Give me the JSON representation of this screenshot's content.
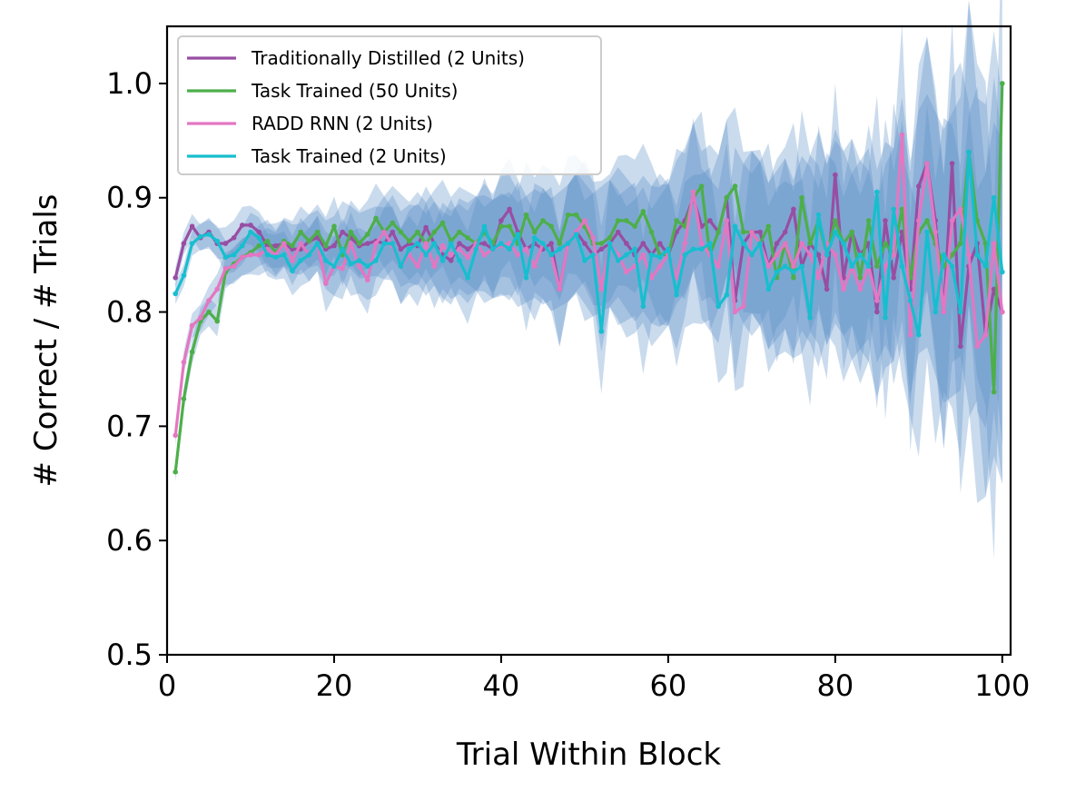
{
  "chart_data": {
    "type": "line",
    "title": "",
    "xlabel": "Trial Within Block",
    "ylabel": "# Correct / # Trials",
    "xlim": [
      0,
      101
    ],
    "ylim": [
      0.5,
      1.05
    ],
    "xticks": [
      0,
      20,
      40,
      60,
      80,
      100
    ],
    "xtick_labels": [
      "0",
      "20",
      "40",
      "60",
      "80",
      "100"
    ],
    "yticks": [
      0.5,
      0.6,
      0.7,
      0.8,
      0.9,
      1.0
    ],
    "ytick_labels": [
      "0.5",
      "0.6",
      "0.7",
      "0.8",
      "0.9",
      "1.0"
    ],
    "grid": false,
    "legend_position": "top-left",
    "confidence_band_color": "#5b8fc7",
    "series": [
      {
        "name": "Traditionally Distilled (2 Units)",
        "color": "#984ea3",
        "x": [
          1,
          2,
          3,
          4,
          5,
          6,
          7,
          8,
          9,
          10,
          11,
          12,
          13,
          14,
          15,
          16,
          17,
          18,
          19,
          20,
          21,
          22,
          23,
          24,
          25,
          26,
          27,
          28,
          29,
          30,
          31,
          32,
          33,
          34,
          35,
          36,
          37,
          38,
          39,
          40,
          41,
          42,
          43,
          44,
          45,
          46,
          47,
          48,
          49,
          50,
          51,
          52,
          53,
          54,
          55,
          56,
          57,
          58,
          59,
          60,
          61,
          62,
          63,
          64,
          65,
          66,
          67,
          68,
          69,
          70,
          71,
          72,
          73,
          74,
          75,
          76,
          77,
          78,
          79,
          80,
          81,
          82,
          83,
          84,
          85,
          86,
          87,
          88,
          89,
          90,
          91,
          92,
          93,
          94,
          95,
          96,
          97,
          98,
          99,
          100
        ],
        "values": [
          0.83,
          0.86,
          0.875,
          0.865,
          0.87,
          0.86,
          0.86,
          0.865,
          0.876,
          0.876,
          0.87,
          0.858,
          0.858,
          0.86,
          0.855,
          0.855,
          0.862,
          0.865,
          0.855,
          0.858,
          0.87,
          0.865,
          0.858,
          0.86,
          0.862,
          0.86,
          0.87,
          0.855,
          0.86,
          0.858,
          0.874,
          0.86,
          0.85,
          0.845,
          0.86,
          0.855,
          0.86,
          0.86,
          0.855,
          0.88,
          0.89,
          0.87,
          0.855,
          0.86,
          0.855,
          0.86,
          0.82,
          0.86,
          0.87,
          0.86,
          0.85,
          0.855,
          0.86,
          0.87,
          0.86,
          0.85,
          0.86,
          0.85,
          0.86,
          0.85,
          0.87,
          0.88,
          0.9,
          0.875,
          0.88,
          0.87,
          0.9,
          0.81,
          0.86,
          0.87,
          0.87,
          0.84,
          0.86,
          0.87,
          0.89,
          0.84,
          0.86,
          0.85,
          0.82,
          0.92,
          0.83,
          0.87,
          0.85,
          0.86,
          0.8,
          0.88,
          0.83,
          0.87,
          0.82,
          0.91,
          0.93,
          0.88,
          0.8,
          0.93,
          0.77,
          0.84,
          0.86,
          0.78,
          0.82,
          0.8
        ]
      },
      {
        "name": "Task Trained (50 Units)",
        "color": "#4daf4a",
        "x": [
          1,
          2,
          3,
          4,
          5,
          6,
          7,
          8,
          9,
          10,
          11,
          12,
          13,
          14,
          15,
          16,
          17,
          18,
          19,
          20,
          21,
          22,
          23,
          24,
          25,
          26,
          27,
          28,
          29,
          30,
          31,
          32,
          33,
          34,
          35,
          36,
          37,
          38,
          39,
          40,
          41,
          42,
          43,
          44,
          45,
          46,
          47,
          48,
          49,
          50,
          51,
          52,
          53,
          54,
          55,
          56,
          57,
          58,
          59,
          60,
          61,
          62,
          63,
          64,
          65,
          66,
          67,
          68,
          69,
          70,
          71,
          72,
          73,
          74,
          75,
          76,
          77,
          78,
          79,
          80,
          81,
          82,
          83,
          84,
          85,
          86,
          87,
          88,
          89,
          90,
          91,
          92,
          93,
          94,
          95,
          96,
          97,
          98,
          99,
          100
        ],
        "values": [
          0.66,
          0.724,
          0.765,
          0.792,
          0.8,
          0.792,
          0.835,
          0.842,
          0.848,
          0.852,
          0.858,
          0.862,
          0.852,
          0.862,
          0.858,
          0.87,
          0.862,
          0.87,
          0.858,
          0.875,
          0.85,
          0.87,
          0.86,
          0.868,
          0.882,
          0.87,
          0.878,
          0.87,
          0.862,
          0.87,
          0.86,
          0.87,
          0.878,
          0.862,
          0.87,
          0.865,
          0.86,
          0.87,
          0.86,
          0.875,
          0.875,
          0.86,
          0.885,
          0.87,
          0.88,
          0.875,
          0.86,
          0.885,
          0.885,
          0.875,
          0.86,
          0.86,
          0.865,
          0.88,
          0.88,
          0.875,
          0.888,
          0.87,
          0.85,
          0.85,
          0.88,
          0.875,
          0.9,
          0.91,
          0.85,
          0.87,
          0.9,
          0.91,
          0.87,
          0.87,
          0.86,
          0.875,
          0.83,
          0.86,
          0.83,
          0.9,
          0.86,
          0.88,
          0.85,
          0.88,
          0.86,
          0.87,
          0.83,
          0.88,
          0.84,
          0.86,
          0.85,
          0.89,
          0.83,
          0.87,
          0.88,
          0.86,
          0.84,
          0.85,
          0.86,
          0.94,
          0.88,
          0.86,
          0.73,
          1.0
        ]
      },
      {
        "name": "RADD RNN (2 Units)",
        "color": "#e377c2",
        "x": [
          1,
          2,
          3,
          4,
          5,
          6,
          7,
          8,
          9,
          10,
          11,
          12,
          13,
          14,
          15,
          16,
          17,
          18,
          19,
          20,
          21,
          22,
          23,
          24,
          25,
          26,
          27,
          28,
          29,
          30,
          31,
          32,
          33,
          34,
          35,
          36,
          37,
          38,
          39,
          40,
          41,
          42,
          43,
          44,
          45,
          46,
          47,
          48,
          49,
          50,
          51,
          52,
          53,
          54,
          55,
          56,
          57,
          58,
          59,
          60,
          61,
          62,
          63,
          64,
          65,
          66,
          67,
          68,
          69,
          70,
          71,
          72,
          73,
          74,
          75,
          76,
          77,
          78,
          79,
          80,
          81,
          82,
          83,
          84,
          85,
          86,
          87,
          88,
          89,
          90,
          91,
          92,
          93,
          94,
          95,
          96,
          97,
          98,
          99,
          100
        ],
        "values": [
          0.692,
          0.756,
          0.788,
          0.795,
          0.81,
          0.82,
          0.838,
          0.84,
          0.848,
          0.85,
          0.85,
          0.855,
          0.85,
          0.86,
          0.845,
          0.86,
          0.85,
          0.86,
          0.825,
          0.84,
          0.838,
          0.86,
          0.84,
          0.828,
          0.86,
          0.87,
          0.858,
          0.84,
          0.85,
          0.84,
          0.86,
          0.84,
          0.858,
          0.85,
          0.855,
          0.848,
          0.86,
          0.85,
          0.855,
          0.858,
          0.86,
          0.85,
          0.855,
          0.84,
          0.86,
          0.85,
          0.82,
          0.86,
          0.87,
          0.88,
          0.865,
          0.82,
          0.86,
          0.85,
          0.835,
          0.84,
          0.85,
          0.83,
          0.84,
          0.85,
          0.83,
          0.86,
          0.905,
          0.86,
          0.85,
          0.84,
          0.88,
          0.8,
          0.805,
          0.87,
          0.86,
          0.84,
          0.85,
          0.86,
          0.84,
          0.86,
          0.85,
          0.83,
          0.86,
          0.85,
          0.82,
          0.84,
          0.82,
          0.84,
          0.81,
          0.84,
          0.85,
          0.955,
          0.78,
          0.88,
          0.93,
          0.87,
          0.8,
          0.88,
          0.89,
          0.85,
          0.77,
          0.78,
          0.86,
          0.8
        ]
      },
      {
        "name": "Task Trained (2 Units)",
        "color": "#17becf",
        "x": [
          1,
          2,
          3,
          4,
          5,
          6,
          7,
          8,
          9,
          10,
          11,
          12,
          13,
          14,
          15,
          16,
          17,
          18,
          19,
          20,
          21,
          22,
          23,
          24,
          25,
          26,
          27,
          28,
          29,
          30,
          31,
          32,
          33,
          34,
          35,
          36,
          37,
          38,
          39,
          40,
          41,
          42,
          43,
          44,
          45,
          46,
          47,
          48,
          49,
          50,
          51,
          52,
          53,
          54,
          55,
          56,
          57,
          58,
          59,
          60,
          61,
          62,
          63,
          64,
          65,
          66,
          67,
          68,
          69,
          70,
          71,
          72,
          73,
          74,
          75,
          76,
          77,
          78,
          79,
          80,
          81,
          82,
          83,
          84,
          85,
          86,
          87,
          88,
          89,
          90,
          91,
          92,
          93,
          94,
          95,
          96,
          97,
          98,
          99,
          100
        ],
        "values": [
          0.816,
          0.832,
          0.86,
          0.866,
          0.868,
          0.862,
          0.848,
          0.85,
          0.858,
          0.87,
          0.865,
          0.85,
          0.848,
          0.85,
          0.836,
          0.845,
          0.85,
          0.86,
          0.845,
          0.84,
          0.855,
          0.842,
          0.845,
          0.84,
          0.845,
          0.86,
          0.86,
          0.84,
          0.855,
          0.86,
          0.85,
          0.86,
          0.845,
          0.86,
          0.845,
          0.83,
          0.855,
          0.875,
          0.855,
          0.86,
          0.855,
          0.868,
          0.83,
          0.865,
          0.86,
          0.85,
          0.855,
          0.86,
          0.868,
          0.845,
          0.85,
          0.783,
          0.86,
          0.845,
          0.85,
          0.855,
          0.805,
          0.85,
          0.848,
          0.855,
          0.815,
          0.85,
          0.855,
          0.855,
          0.86,
          0.805,
          0.815,
          0.875,
          0.86,
          0.85,
          0.86,
          0.82,
          0.835,
          0.84,
          0.835,
          0.84,
          0.795,
          0.885,
          0.85,
          0.87,
          0.86,
          0.84,
          0.85,
          0.84,
          0.905,
          0.795,
          0.89,
          0.84,
          0.81,
          0.78,
          0.87,
          0.8,
          0.85,
          0.84,
          0.8,
          0.94,
          0.85,
          0.84,
          0.9,
          0.835
        ]
      }
    ]
  }
}
